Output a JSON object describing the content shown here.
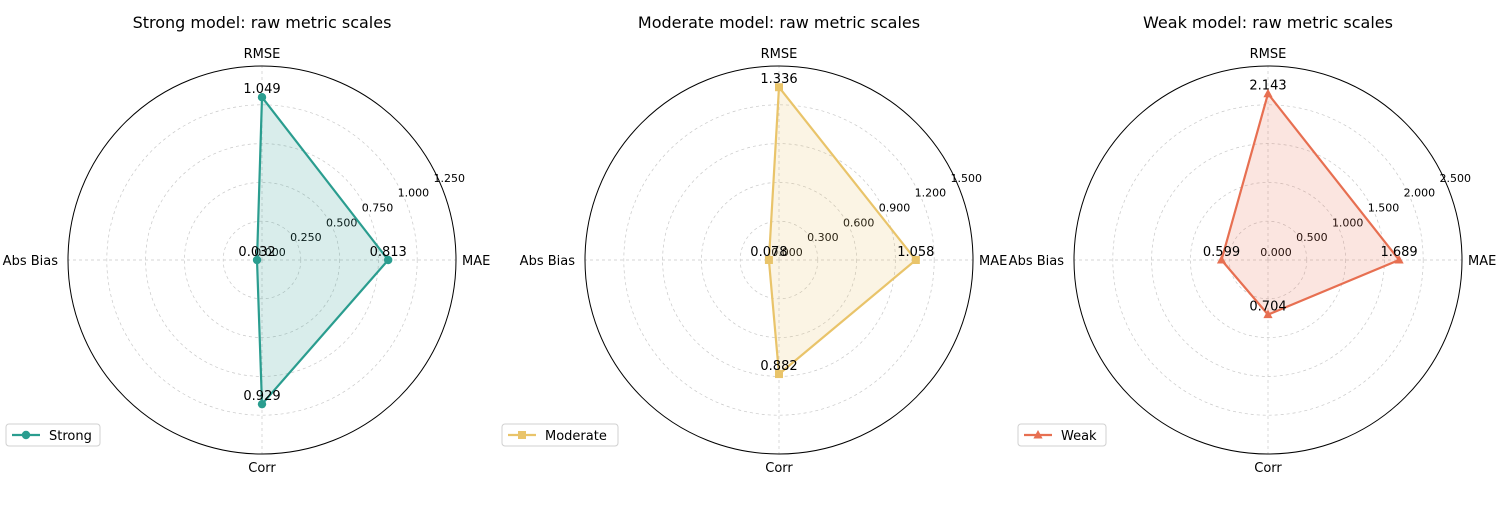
{
  "chart_data": [
    {
      "type": "radar",
      "title": "Strong model: raw metric scales",
      "axes": [
        "MAE",
        "RMSE",
        "Abs Bias",
        "Corr"
      ],
      "rlim": [
        0,
        1.25
      ],
      "rticks": [
        "0.000",
        "0.250",
        "0.500",
        "0.750",
        "1.000",
        "1.250"
      ],
      "grid": true,
      "legend_position": "lower-left",
      "series": [
        {
          "name": "Strong",
          "values": [
            0.813,
            1.049,
            0.032,
            0.929
          ],
          "labels": [
            "0.813",
            "1.049",
            "0.032",
            "0.929"
          ],
          "color": "#2a9d8f",
          "marker": "circle"
        }
      ]
    },
    {
      "type": "radar",
      "title": "Moderate model: raw metric scales",
      "axes": [
        "MAE",
        "RMSE",
        "Abs Bias",
        "Corr"
      ],
      "rlim": [
        0,
        1.5
      ],
      "rticks": [
        "0.000",
        "0.300",
        "0.600",
        "0.900",
        "1.200",
        "1.500"
      ],
      "grid": true,
      "legend_position": "lower-left",
      "series": [
        {
          "name": "Moderate",
          "values": [
            1.058,
            1.336,
            0.078,
            0.882
          ],
          "labels": [
            "1.058",
            "1.336",
            "0.078",
            "0.882"
          ],
          "color": "#e9c46a",
          "marker": "square"
        }
      ]
    },
    {
      "type": "radar",
      "title": "Weak model: raw metric scales",
      "axes": [
        "MAE",
        "RMSE",
        "Abs Bias",
        "Corr"
      ],
      "rlim": [
        0,
        2.5
      ],
      "rticks": [
        "0.000",
        "0.500",
        "1.000",
        "1.500",
        "2.000",
        "2.500"
      ],
      "grid": true,
      "legend_position": "lower-left",
      "series": [
        {
          "name": "Weak",
          "values": [
            1.689,
            2.143,
            0.599,
            0.704
          ],
          "labels": [
            "1.689",
            "2.143",
            "0.599",
            "0.704"
          ],
          "color": "#e76f51",
          "marker": "triangle"
        }
      ]
    }
  ]
}
